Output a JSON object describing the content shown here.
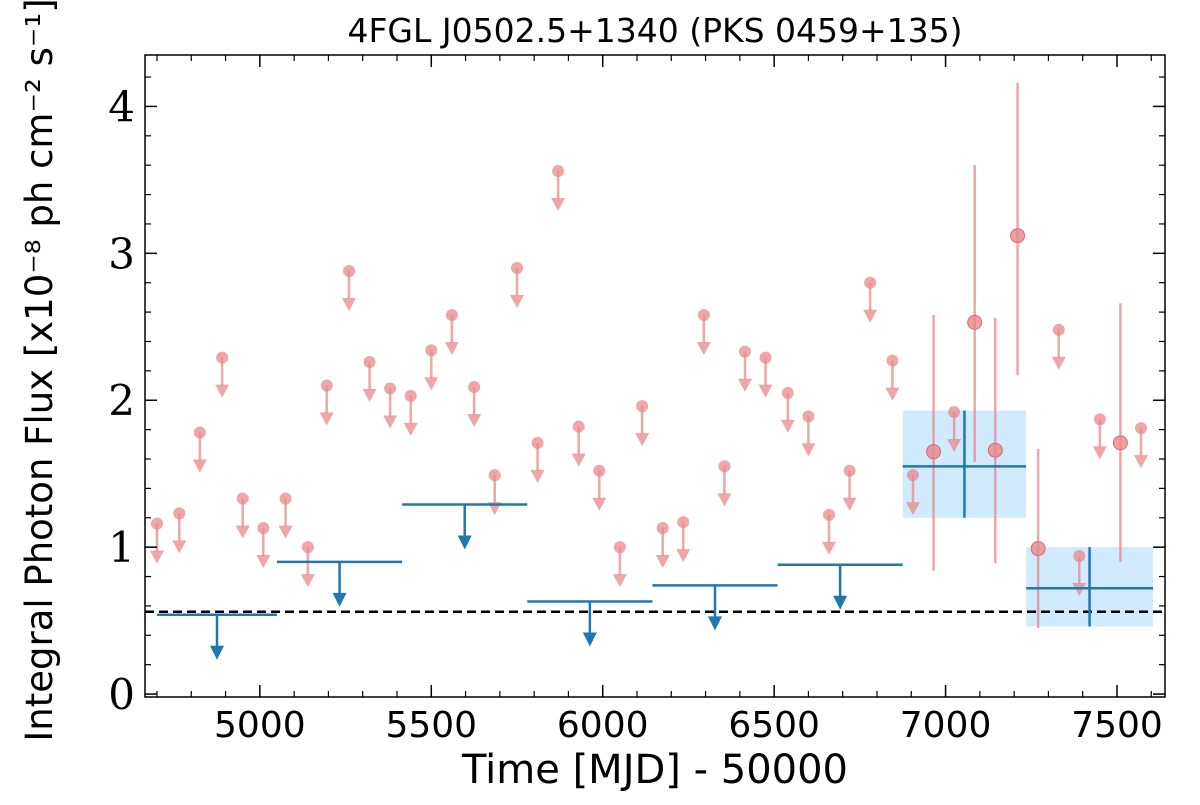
{
  "chart_data": {
    "type": "scatter",
    "title": "4FGL J0502.5+1340 (PKS 0459+135)",
    "xlabel": "Time [MJD] - 50000",
    "ylabel": "Integral Photon Flux [x10⁻⁸ ph cm⁻² s⁻¹]",
    "xlim": [
      4665,
      7640
    ],
    "ylim": [
      -0.02,
      4.35
    ],
    "x_ticks": [
      5000,
      5500,
      6000,
      6500,
      7000,
      7500
    ],
    "y_ticks": [
      0,
      1,
      2,
      3,
      4
    ],
    "grid": false,
    "reference_line": {
      "y": 0.56,
      "style": "dashed",
      "color": "#000000"
    },
    "series": [
      {
        "color": "#e8888b",
        "upper_limits": [
          {
            "x": 4700,
            "y": 1.16
          },
          {
            "x": 4765,
            "y": 1.23
          },
          {
            "x": 4825,
            "y": 1.78
          },
          {
            "x": 4890,
            "y": 2.29
          },
          {
            "x": 4950,
            "y": 1.33
          },
          {
            "x": 5010,
            "y": 1.13
          },
          {
            "x": 5075,
            "y": 1.33
          },
          {
            "x": 5140,
            "y": 1.0
          },
          {
            "x": 5195,
            "y": 2.1
          },
          {
            "x": 5260,
            "y": 2.88
          },
          {
            "x": 5320,
            "y": 2.26
          },
          {
            "x": 5380,
            "y": 2.08
          },
          {
            "x": 5440,
            "y": 2.03
          },
          {
            "x": 5500,
            "y": 2.34
          },
          {
            "x": 5560,
            "y": 2.58
          },
          {
            "x": 5625,
            "y": 2.09
          },
          {
            "x": 5685,
            "y": 1.49
          },
          {
            "x": 5750,
            "y": 2.9
          },
          {
            "x": 5810,
            "y": 1.71
          },
          {
            "x": 5870,
            "y": 3.56
          },
          {
            "x": 5930,
            "y": 1.82
          },
          {
            "x": 5990,
            "y": 1.52
          },
          {
            "x": 6050,
            "y": 1.0
          },
          {
            "x": 6115,
            "y": 1.96
          },
          {
            "x": 6175,
            "y": 1.13
          },
          {
            "x": 6235,
            "y": 1.17
          },
          {
            "x": 6295,
            "y": 2.58
          },
          {
            "x": 6355,
            "y": 1.55
          },
          {
            "x": 6415,
            "y": 2.33
          },
          {
            "x": 6475,
            "y": 2.29
          },
          {
            "x": 6540,
            "y": 2.05
          },
          {
            "x": 6600,
            "y": 1.89
          },
          {
            "x": 6660,
            "y": 1.22
          },
          {
            "x": 6720,
            "y": 1.52
          },
          {
            "x": 6780,
            "y": 2.8
          },
          {
            "x": 6845,
            "y": 2.27
          },
          {
            "x": 6905,
            "y": 1.49
          },
          {
            "x": 7025,
            "y": 1.92
          },
          {
            "x": 7330,
            "y": 2.48
          },
          {
            "x": 7390,
            "y": 0.94
          },
          {
            "x": 7450,
            "y": 1.87
          },
          {
            "x": 7570,
            "y": 1.81
          }
        ],
        "detections": [
          {
            "x": 6965,
            "y": 1.65,
            "y_low": 0.84,
            "y_high": 2.58
          },
          {
            "x": 7085,
            "y": 2.53,
            "y_low": 1.58,
            "y_high": 3.6
          },
          {
            "x": 7145,
            "y": 1.66,
            "y_low": 0.89,
            "y_high": 2.56
          },
          {
            "x": 7210,
            "y": 3.12,
            "y_low": 2.17,
            "y_high": 4.16
          },
          {
            "x": 7270,
            "y": 0.99,
            "y_low": 0.45,
            "y_high": 1.67
          },
          {
            "x": 7510,
            "y": 1.71,
            "y_low": 0.9,
            "y_high": 2.66
          }
        ]
      },
      {
        "color": "#1f77b4",
        "upper_limits": [
          {
            "x_start": 4700,
            "x_end": 5050,
            "y": 0.54
          },
          {
            "x_start": 5050,
            "x_end": 5415,
            "y": 0.9
          },
          {
            "x_start": 5415,
            "x_end": 5780,
            "y": 1.29
          },
          {
            "x_start": 5780,
            "x_end": 6145,
            "y": 0.63
          },
          {
            "x_start": 6145,
            "x_end": 6510,
            "y": 0.74
          },
          {
            "x_start": 6510,
            "x_end": 6875,
            "y": 0.88
          }
        ],
        "detections": [
          {
            "x_start": 6875,
            "x_end": 7235,
            "y": 1.55,
            "y_low": 1.2,
            "y_high": 1.93
          },
          {
            "x_start": 7235,
            "x_end": 7605,
            "y": 0.72,
            "y_low": 0.46,
            "y_high": 1.0
          }
        ]
      }
    ]
  }
}
